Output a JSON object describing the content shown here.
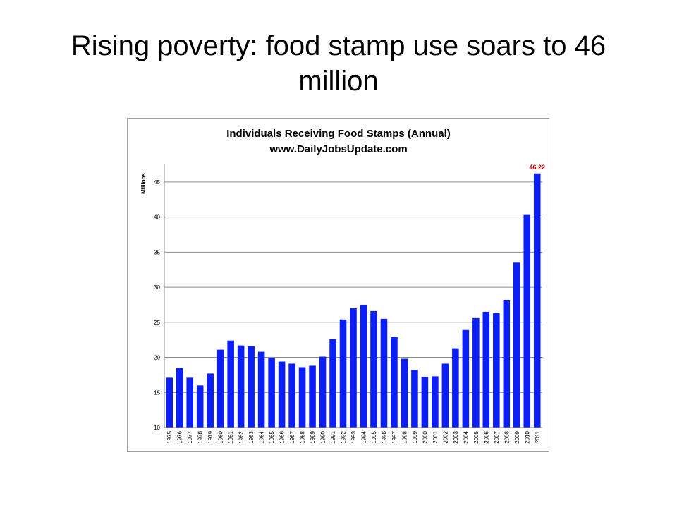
{
  "slide": {
    "title": "Rising poverty: food stamp use soars to 46 million"
  },
  "chart_data": {
    "type": "bar",
    "title": "Individuals Receiving Food Stamps (Annual)",
    "subtitle": "www.DailyJobsUpdate.com",
    "xlabel": "",
    "ylabel": "Millions",
    "ylim": [
      10,
      47
    ],
    "yticks": [
      10,
      15,
      20,
      25,
      30,
      35,
      40,
      45
    ],
    "grid": true,
    "legend": "none",
    "bar_color": "#0a1ef5",
    "annotation_color": "#c00000",
    "categories": [
      "1975",
      "1976",
      "1977",
      "1978",
      "1979",
      "1980",
      "1981",
      "1982",
      "1983",
      "1984",
      "1985",
      "1986",
      "1987",
      "1988",
      "1989",
      "1990",
      "1991",
      "1992",
      "1993",
      "1994",
      "1995",
      "1996",
      "1997",
      "1998",
      "1999",
      "2000",
      "2001",
      "2002",
      "2003",
      "2004",
      "2005",
      "2006",
      "2007",
      "2008",
      "2009",
      "2010",
      "2011"
    ],
    "values": [
      17.1,
      18.5,
      17.1,
      16.0,
      17.7,
      21.1,
      22.4,
      21.7,
      21.6,
      20.8,
      19.9,
      19.4,
      19.1,
      18.6,
      18.8,
      20.1,
      22.6,
      25.4,
      27.0,
      27.5,
      26.6,
      25.5,
      22.9,
      19.8,
      18.2,
      17.2,
      17.3,
      19.1,
      21.3,
      23.9,
      25.6,
      26.5,
      26.3,
      28.2,
      33.5,
      40.3,
      46.22
    ],
    "annotations": [
      {
        "category": "2011",
        "text": "46.22"
      }
    ]
  }
}
